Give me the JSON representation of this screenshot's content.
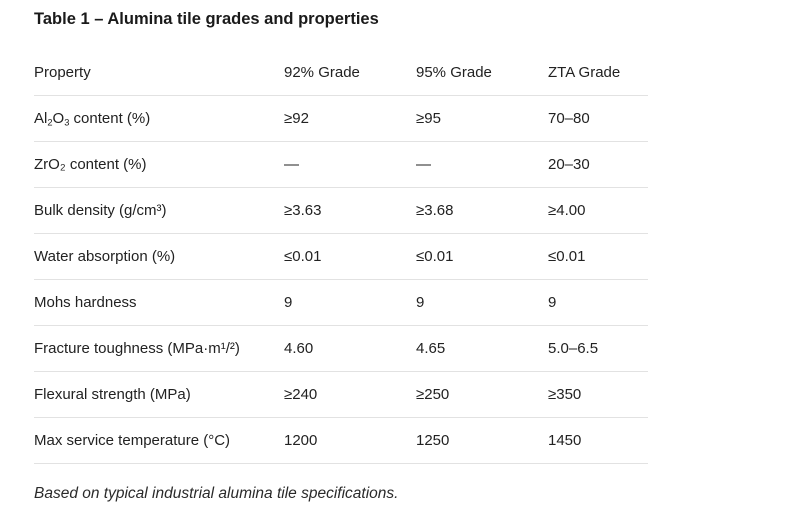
{
  "title": "Table 1 – Alumina tile grades and properties",
  "table": {
    "headers": [
      "Property",
      "92% Grade",
      "95% Grade",
      "ZTA Grade"
    ],
    "rows": [
      {
        "property_main": "Al",
        "property_sub1": "2",
        "property_mid": "O",
        "property_sub2": "3",
        "property_rest": " content (%)",
        "v1": "≥92",
        "v2": "≥95",
        "v3": "70–80"
      },
      {
        "property": "ZrO₂ content (%)",
        "v1": "—",
        "v2": "—",
        "v3": "20–30"
      },
      {
        "property": "Bulk density (g/cm³)",
        "v1": "≥3.63",
        "v2": "≥3.68",
        "v3": "≥4.00"
      },
      {
        "property": "Water absorption (%)",
        "v1": "≤0.01",
        "v2": "≤0.01",
        "v3": "≤0.01"
      },
      {
        "property": "Mohs hardness",
        "v1": "9",
        "v2": "9",
        "v3": "9"
      },
      {
        "property": "Fracture toughness (MPa·m¹/²)",
        "v1": "4.60",
        "v2": "4.65",
        "v3": "5.0–6.5"
      },
      {
        "property": "Flexural strength (MPa)",
        "v1": "≥240",
        "v2": "≥250",
        "v3": "≥350"
      },
      {
        "property": "Max service temperature (°C)",
        "v1": "1200",
        "v2": "1250",
        "v3": "1450"
      }
    ]
  },
  "caption": "Based on typical industrial alumina tile specifications."
}
